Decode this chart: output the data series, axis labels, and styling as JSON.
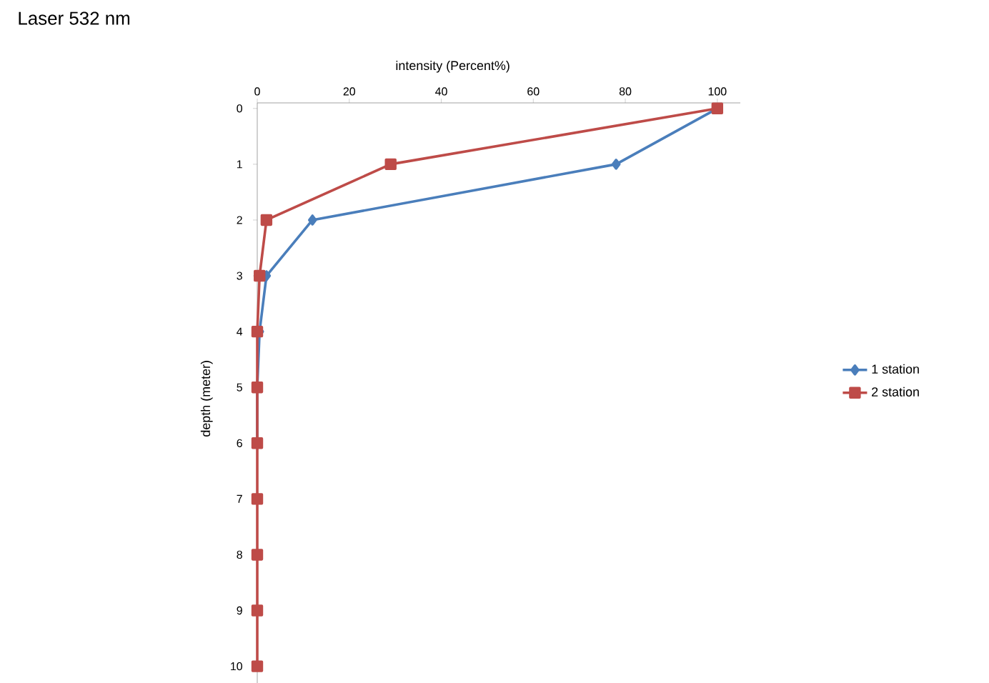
{
  "chart_data": {
    "type": "line",
    "title": "Laser 532 nm",
    "xlabel": "intensity (Percent%)",
    "ylabel": "depth (meter)",
    "xlim": [
      0,
      105
    ],
    "xticks": [
      0,
      20,
      40,
      60,
      80,
      100
    ],
    "ylim": [
      10.3,
      -0.1
    ],
    "yticks": [
      0,
      1,
      2,
      3,
      4,
      5,
      6,
      7,
      8,
      9,
      10
    ],
    "legend": "right",
    "line_style": "solid",
    "series": [
      {
        "name": "1 station",
        "color": "#4a7ebb",
        "marker": "diamond",
        "x": [
          100,
          78,
          12,
          2,
          0.5,
          0,
          0,
          null,
          null,
          null,
          null
        ],
        "values": [
          0,
          1,
          2,
          3,
          4,
          5,
          6,
          null,
          null,
          null,
          null
        ]
      },
      {
        "name": "2 station",
        "color": "#be4b48",
        "marker": "square",
        "x": [
          100,
          29,
          2,
          0.5,
          0,
          0,
          0,
          0,
          0,
          0,
          0
        ],
        "values": [
          0,
          1,
          2,
          3,
          4,
          5,
          6,
          7,
          8,
          9,
          10
        ]
      }
    ]
  }
}
